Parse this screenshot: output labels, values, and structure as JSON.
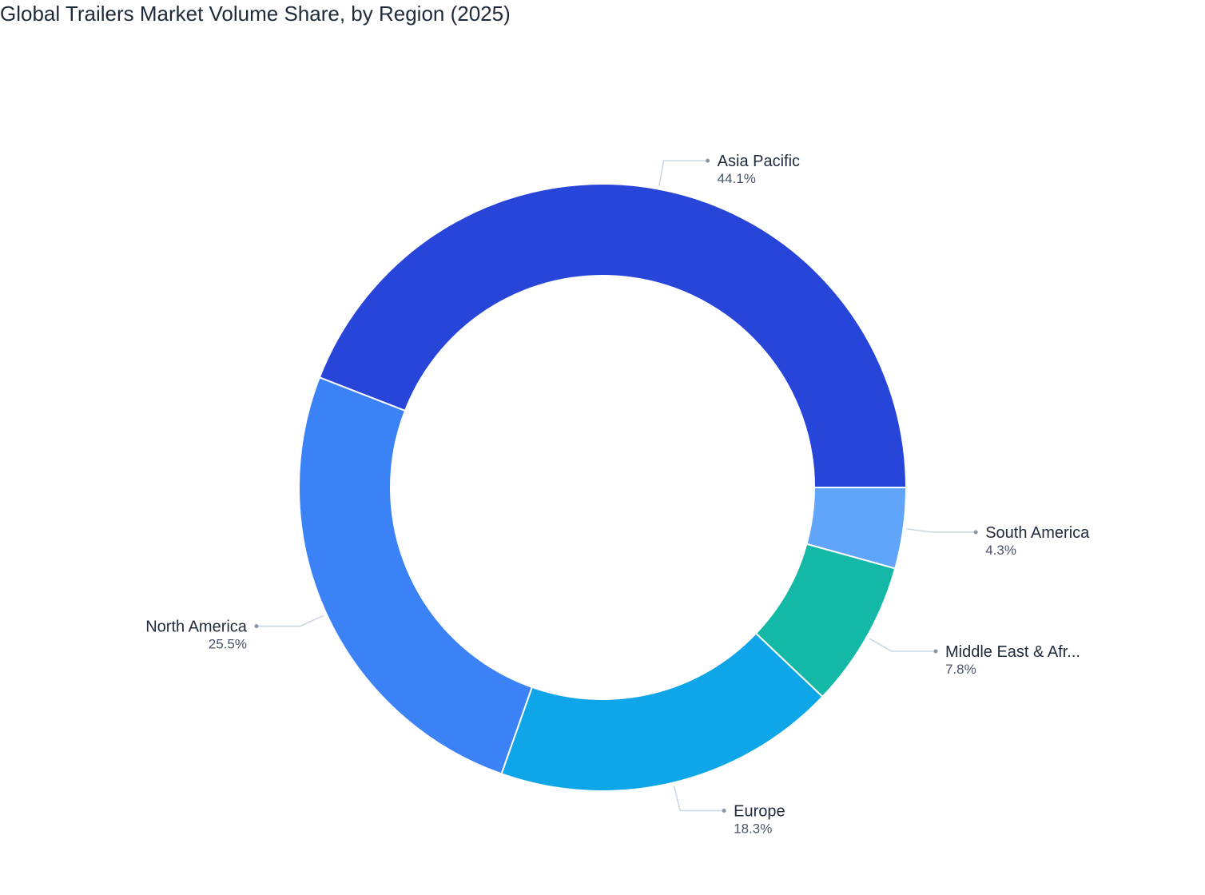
{
  "chart_data": {
    "type": "pie",
    "title": "Global Trailers Market Volume Share, by Region (2025)",
    "donut": true,
    "slices": [
      {
        "label": "Asia Pacific",
        "value": 44.1,
        "value_label": "44.1%",
        "color": "#2845da"
      },
      {
        "label": "South America",
        "value": 4.3,
        "value_label": "4.3%",
        "color": "#60a5fa"
      },
      {
        "label": "Middle East & Afr...",
        "value": 7.8,
        "value_label": "7.8%",
        "color": "#14b8a6"
      },
      {
        "label": "Europe",
        "value": 18.3,
        "value_label": "18.3%",
        "color": "#0ea5e9"
      },
      {
        "label": "North America",
        "value": 25.5,
        "value_label": "25.5%",
        "color": "#3b82f6"
      }
    ],
    "legend": "none",
    "grid": false
  }
}
